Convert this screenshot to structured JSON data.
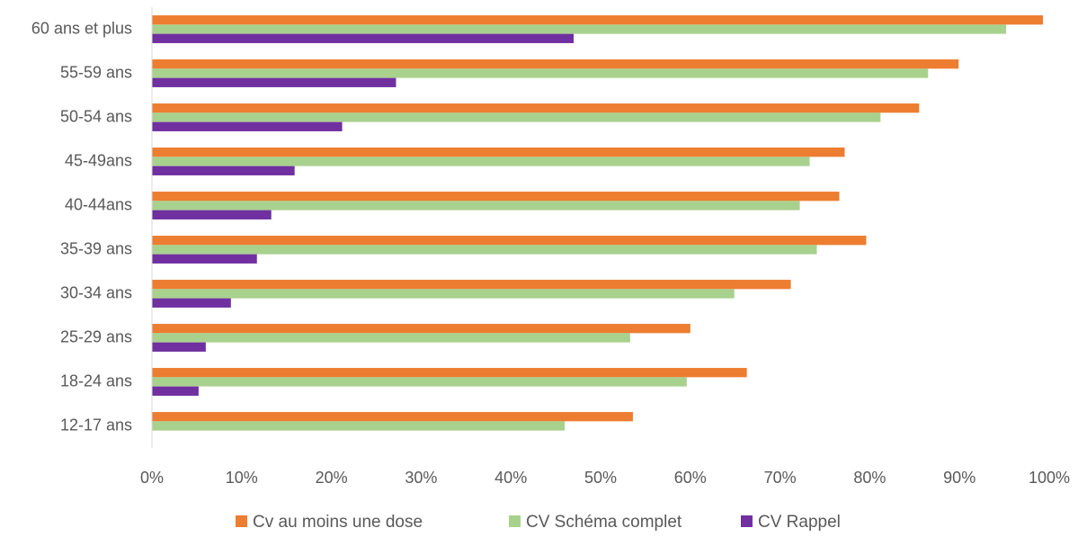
{
  "chart_data": {
    "type": "hbar",
    "categories": [
      "60 ans et plus",
      "55-59 ans",
      "50-54 ans",
      "45-49ans",
      "40-44ans",
      "35-39 ans",
      "30-34 ans",
      "25-29 ans",
      "18-24 ans",
      "12-17 ans"
    ],
    "series": [
      {
        "name": "Cv au moins une dose",
        "color": "#ed7d31",
        "values": [
          99.3,
          89.9,
          85.5,
          77.2,
          76.6,
          79.6,
          71.2,
          60.0,
          66.3,
          53.6
        ]
      },
      {
        "name": "CV Schéma complet",
        "color": "#a9d18e",
        "values": [
          95.2,
          86.5,
          81.2,
          73.3,
          72.2,
          74.1,
          64.9,
          53.3,
          59.6,
          46.0
        ]
      },
      {
        "name": "CV Rappel",
        "color": "#7030a0",
        "values": [
          47.0,
          27.2,
          21.2,
          15.9,
          13.3,
          11.7,
          8.8,
          6.0,
          5.2,
          null
        ]
      }
    ],
    "xlim": [
      0,
      100
    ],
    "xticks": [
      {
        "value": 0,
        "label": "0%"
      },
      {
        "value": 10,
        "label": "10%"
      },
      {
        "value": 20,
        "label": "20%"
      },
      {
        "value": 30,
        "label": "30%"
      },
      {
        "value": 40,
        "label": "40%"
      },
      {
        "value": 50,
        "label": "50%"
      },
      {
        "value": 60,
        "label": "60%"
      },
      {
        "value": 70,
        "label": "70%"
      },
      {
        "value": 80,
        "label": "80%"
      },
      {
        "value": 90,
        "label": "90%"
      },
      {
        "value": 100,
        "label": "100%"
      }
    ],
    "legend": "bottom"
  }
}
